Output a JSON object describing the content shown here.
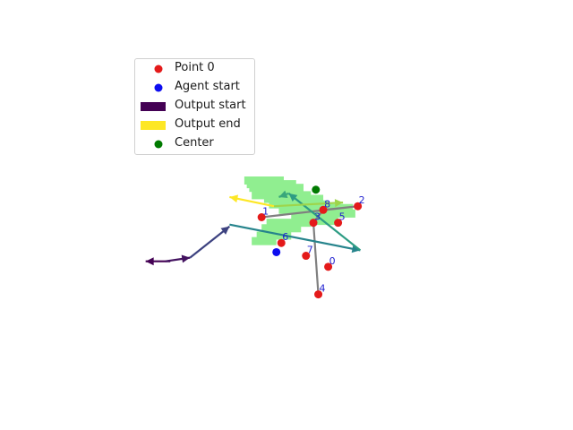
{
  "chart_data": {
    "type": "scatter",
    "title": "",
    "xlabel": "",
    "ylabel": "",
    "axes_visible": false,
    "grid": false,
    "xlim": [
      -4.5,
      4.5
    ],
    "ylim": [
      -4.5,
      4.5
    ],
    "legend": {
      "placement": "upper-left",
      "entries": [
        {
          "label": "Point 0",
          "kind": "marker",
          "color": "#e41a1a"
        },
        {
          "label": "Agent start",
          "kind": "marker",
          "color": "#0d0df0"
        },
        {
          "label": "Output start",
          "kind": "patch",
          "color": "#440154"
        },
        {
          "label": "Output end",
          "kind": "patch",
          "color": "#fde725"
        },
        {
          "label": "Center",
          "kind": "marker",
          "color": "#007a00"
        }
      ]
    },
    "colors": {
      "points": "#e41a1a",
      "point_labels": "#1f1fd0",
      "agent": "#0d0df0",
      "center": "#007a00",
      "region": "#90ee90",
      "path": "#808080"
    },
    "center": {
      "x": 0.45,
      "y": 0.75
    },
    "agent_start": {
      "x": -0.35,
      "y": -0.95
    },
    "points": [
      {
        "label": "0",
        "x": 0.7,
        "y": -1.35
      },
      {
        "label": "1",
        "x": -0.65,
        "y": 0.0
      },
      {
        "label": "2",
        "x": 1.3,
        "y": 0.3
      },
      {
        "label": "3",
        "x": 0.4,
        "y": -0.15
      },
      {
        "label": "4",
        "x": 0.5,
        "y": -2.1
      },
      {
        "label": "5",
        "x": 0.9,
        "y": -0.15
      },
      {
        "label": "6",
        "x": -0.25,
        "y": -0.7
      },
      {
        "label": "7",
        "x": 0.25,
        "y": -1.05
      },
      {
        "label": "8",
        "x": 0.6,
        "y": 0.2
      }
    ],
    "path_order": [
      "4",
      "3",
      "8",
      "2",
      "1"
    ],
    "region_cells": [
      [
        -0.6,
        1.0,
        0.4
      ],
      [
        -0.45,
        0.9,
        0.5
      ],
      [
        -0.35,
        0.8,
        0.55
      ],
      [
        -0.25,
        0.6,
        0.6
      ],
      [
        0.0,
        0.5,
        0.6
      ],
      [
        0.1,
        0.35,
        0.6
      ],
      [
        0.25,
        0.2,
        0.55
      ],
      [
        0.4,
        0.05,
        0.45
      ],
      [
        0.55,
        -0.1,
        0.35
      ],
      [
        0.75,
        0.25,
        0.45
      ],
      [
        0.9,
        0.1,
        0.35
      ],
      [
        -0.1,
        -0.15,
        0.45
      ],
      [
        -0.25,
        -0.3,
        0.4
      ],
      [
        -0.4,
        -0.5,
        0.35
      ],
      [
        -0.6,
        -0.65,
        0.25
      ]
    ],
    "arrows": [
      {
        "from": [
          -2.5,
          -1.2
        ],
        "to": [
          -3.0,
          -1.2
        ],
        "t": 0.0
      },
      {
        "from": [
          -2.6,
          -1.2
        ],
        "to": [
          -2.1,
          -1.1
        ],
        "t": 0.05
      },
      {
        "from": [
          -2.1,
          -1.1
        ],
        "to": [
          -1.3,
          -0.25
        ],
        "t": 0.2
      },
      {
        "from": [
          -1.3,
          -0.2
        ],
        "to": [
          1.35,
          -0.9
        ],
        "t": 0.45
      },
      {
        "from": [
          1.35,
          -0.9
        ],
        "to": [
          -0.1,
          0.65
        ],
        "t": 0.55
      },
      {
        "from": [
          -0.1,
          0.65
        ],
        "to": [
          -0.3,
          0.55
        ],
        "t": 0.6
      },
      {
        "from": [
          -0.4,
          0.3
        ],
        "to": [
          1.0,
          0.4
        ],
        "t": 0.85
      },
      {
        "from": [
          -0.4,
          0.3
        ],
        "to": [
          -1.3,
          0.55
        ],
        "t": 1.0
      }
    ]
  }
}
